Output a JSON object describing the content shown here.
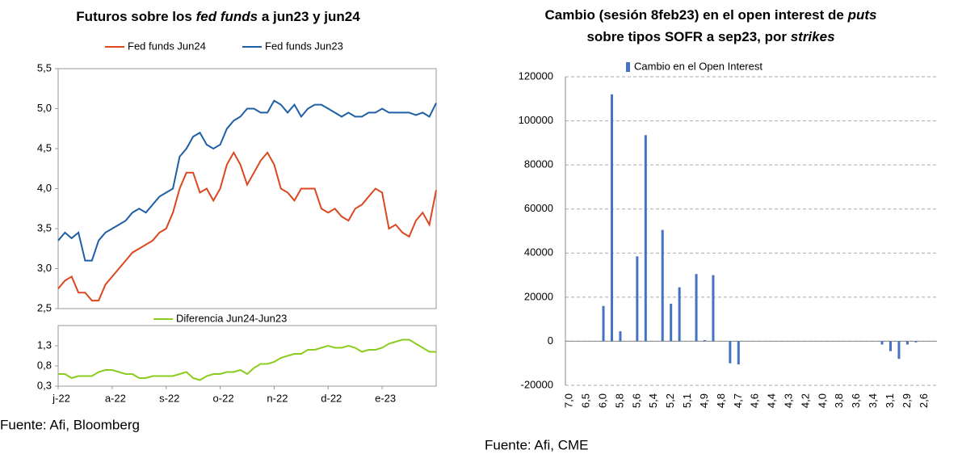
{
  "chart_data": [
    {
      "type": "line",
      "title_parts": [
        "Futuros sobre los ",
        "fed funds",
        " a jun23 y jun24"
      ],
      "ylim": [
        2.5,
        5.5
      ],
      "yticks": [
        {
          "value": 2.5,
          "label": "2,5"
        },
        {
          "value": 3.0,
          "label": "3,0"
        },
        {
          "value": 3.5,
          "label": "3,5"
        },
        {
          "value": 4.0,
          "label": "4,0"
        },
        {
          "value": 4.5,
          "label": "4,5"
        },
        {
          "value": 5.0,
          "label": "5,0"
        },
        {
          "value": 5.5,
          "label": "5,5"
        }
      ],
      "series": [
        {
          "name": "Fed funds Jun24",
          "color": "#d9481f",
          "values": [
            2.75,
            2.85,
            2.9,
            2.7,
            2.7,
            2.6,
            2.6,
            2.8,
            2.9,
            3.0,
            3.1,
            3.2,
            3.25,
            3.3,
            3.35,
            3.45,
            3.5,
            3.7,
            4.0,
            4.2,
            4.2,
            3.95,
            4.0,
            3.85,
            4.0,
            4.3,
            4.45,
            4.3,
            4.05,
            4.2,
            4.35,
            4.45,
            4.3,
            4.0,
            3.95,
            3.85,
            4.0,
            4.0,
            4.0,
            3.75,
            3.7,
            3.75,
            3.65,
            3.6,
            3.75,
            3.8,
            3.9,
            4.0,
            3.95,
            3.5,
            3.55,
            3.45,
            3.4,
            3.6,
            3.7,
            3.55,
            3.98
          ]
        },
        {
          "name": "Fed funds Jun23",
          "color": "#1f5fa6",
          "values": [
            3.35,
            3.45,
            3.38,
            3.45,
            3.1,
            3.1,
            3.35,
            3.45,
            3.5,
            3.55,
            3.6,
            3.7,
            3.75,
            3.7,
            3.8,
            3.9,
            3.95,
            4.0,
            4.4,
            4.5,
            4.65,
            4.7,
            4.55,
            4.5,
            4.55,
            4.75,
            4.85,
            4.9,
            5.0,
            5.0,
            4.95,
            4.95,
            5.1,
            5.05,
            4.95,
            5.05,
            4.9,
            5.0,
            5.05,
            5.05,
            5.0,
            4.95,
            4.9,
            4.95,
            4.9,
            4.9,
            4.95,
            4.95,
            5.0,
            4.95,
            4.95,
            4.95,
            4.95,
            4.92,
            4.95,
            4.9,
            5.07
          ]
        }
      ],
      "source": "Fuente: Afi, Bloomberg"
    },
    {
      "type": "line",
      "categories": [
        "j-22",
        null,
        null,
        null,
        null,
        null,
        null,
        null,
        "a-22",
        null,
        null,
        null,
        null,
        null,
        null,
        null,
        "s-22",
        null,
        null,
        null,
        null,
        null,
        null,
        null,
        "o-22",
        null,
        null,
        null,
        null,
        null,
        null,
        null,
        "n-22",
        null,
        null,
        null,
        null,
        null,
        null,
        null,
        "d-22",
        null,
        null,
        null,
        null,
        null,
        null,
        null,
        "e-23",
        null,
        null,
        null,
        null,
        null,
        null,
        null,
        null
      ],
      "ylim": [
        0.3,
        1.8
      ],
      "yticks": [
        {
          "value": 0.3,
          "label": "0,3"
        },
        {
          "value": 0.8,
          "label": "0,8"
        },
        {
          "value": 1.3,
          "label": "1,3"
        }
      ],
      "series": [
        {
          "name": "Diferencia Jun24-Jun23",
          "color": "#8ccc1f",
          "values": [
            0.6,
            0.6,
            0.5,
            0.55,
            0.55,
            0.55,
            0.65,
            0.7,
            0.7,
            0.65,
            0.6,
            0.6,
            0.5,
            0.5,
            0.55,
            0.55,
            0.55,
            0.55,
            0.6,
            0.65,
            0.5,
            0.45,
            0.55,
            0.6,
            0.6,
            0.65,
            0.65,
            0.7,
            0.6,
            0.75,
            0.85,
            0.85,
            0.9,
            1.0,
            1.05,
            1.1,
            1.1,
            1.2,
            1.2,
            1.25,
            1.3,
            1.25,
            1.25,
            1.3,
            1.25,
            1.15,
            1.2,
            1.2,
            1.25,
            1.35,
            1.4,
            1.45,
            1.45,
            1.35,
            1.25,
            1.15,
            1.15
          ]
        }
      ]
    },
    {
      "type": "bar",
      "title_parts": [
        "Cambio (sesión 8feb23) en el open interest de ",
        "puts",
        "sobre tipos SOFR a sep23, por ",
        "strikes"
      ],
      "categories": [
        "7,0",
        null,
        "6,5",
        null,
        "6,0",
        null,
        "5,8",
        null,
        "5,6",
        null,
        "5,4",
        null,
        "5,2",
        null,
        "5,1",
        null,
        "4,9",
        null,
        "4,8",
        null,
        "4,7",
        null,
        "4,6",
        null,
        "4,4",
        null,
        "4,3",
        null,
        "4,2",
        null,
        "4,0",
        null,
        "3,8",
        null,
        "3,6",
        null,
        "3,4",
        null,
        "3,1",
        null,
        "2,9",
        null,
        "2,6",
        null
      ],
      "series": [
        {
          "name": "Cambio en el Open Interest",
          "color": "#4472c4",
          "values": [
            null,
            null,
            null,
            null,
            16000,
            112000,
            4500,
            null,
            38500,
            93500,
            null,
            50500,
            17000,
            24500,
            null,
            30500,
            500,
            30000,
            null,
            -10000,
            -10500,
            null,
            null,
            null,
            null,
            null,
            null,
            null,
            null,
            null,
            null,
            null,
            null,
            null,
            null,
            null,
            null,
            -1500,
            -4500,
            -8000,
            -1500,
            -500,
            null,
            null
          ]
        }
      ],
      "ylim": [
        -20000,
        120000
      ],
      "yticks": [
        -20000,
        0,
        20000,
        40000,
        60000,
        80000,
        100000,
        120000
      ],
      "grid": true,
      "source": "Fuente: Afi, CME"
    }
  ]
}
